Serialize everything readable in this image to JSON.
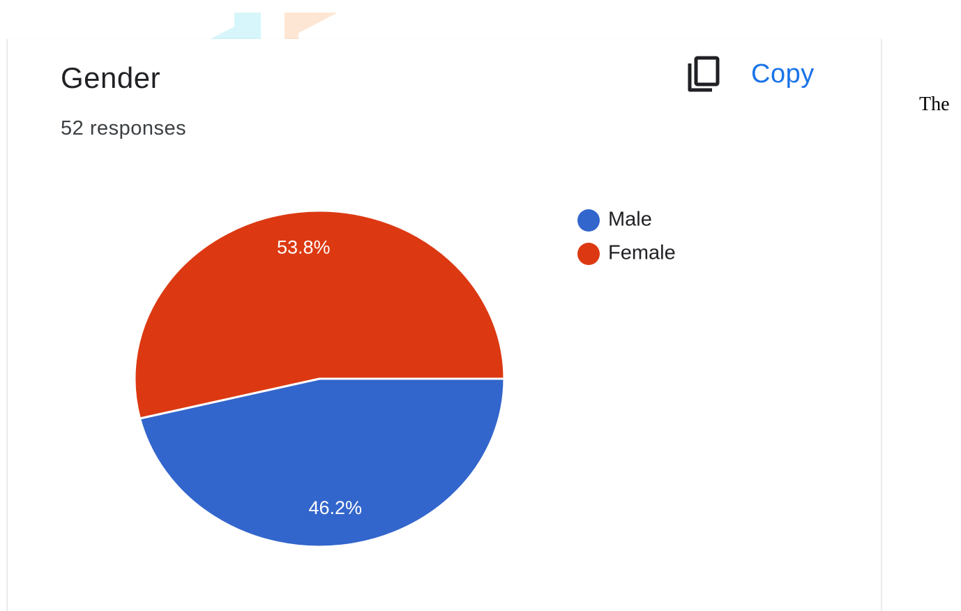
{
  "card": {
    "title": "Gender",
    "subtitle": "52 responses",
    "copy_label": "Copy"
  },
  "side_text": "The",
  "icons": {
    "copy": "copy-icon"
  },
  "colors": {
    "male": "#3366cc",
    "female": "#dc3912",
    "copy_accent": "#1a73e8"
  },
  "chart_data": {
    "type": "pie",
    "title": "Gender",
    "subtitle": "52 responses",
    "categories": [
      "Male",
      "Female"
    ],
    "values": [
      46.2,
      53.8
    ],
    "labels": [
      "46.2%",
      "53.8%"
    ],
    "colors": [
      "#3366cc",
      "#dc3912"
    ],
    "legend": {
      "position": "right",
      "entries": [
        "Male",
        "Female"
      ]
    }
  }
}
